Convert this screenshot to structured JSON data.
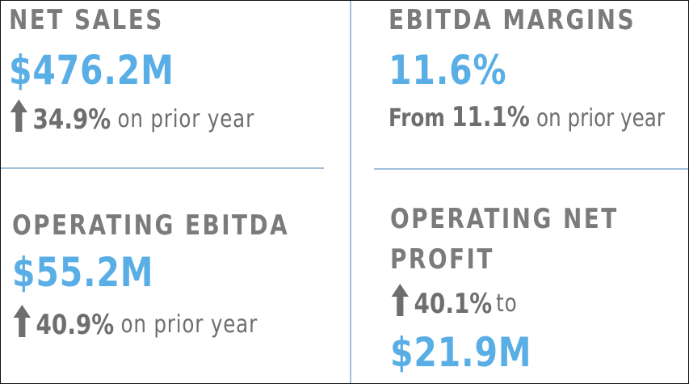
{
  "net_sales": {
    "label": "NET SALES",
    "value": "$476.2M",
    "change": "34.9%",
    "change_text": "on prior year"
  },
  "ebitda_margins": {
    "label": "EBITDA MARGINS",
    "value": "11.6%",
    "from_label": "From",
    "from_value": "11.1%",
    "from_text": "on prior year"
  },
  "operating_ebitda": {
    "label": "OPERATING EBITDA",
    "value": "$55.2M",
    "change": "40.9%",
    "change_text": "on prior year"
  },
  "operating_net_profit": {
    "label_line1": "OPERATING NET",
    "label_line2": "PROFIT",
    "change": "40.1%",
    "change_text": "to",
    "value": "$21.9M"
  },
  "colors": {
    "accent": "#5aaee6",
    "label": "#7b7b7b",
    "divider": "#9fbfdd"
  }
}
